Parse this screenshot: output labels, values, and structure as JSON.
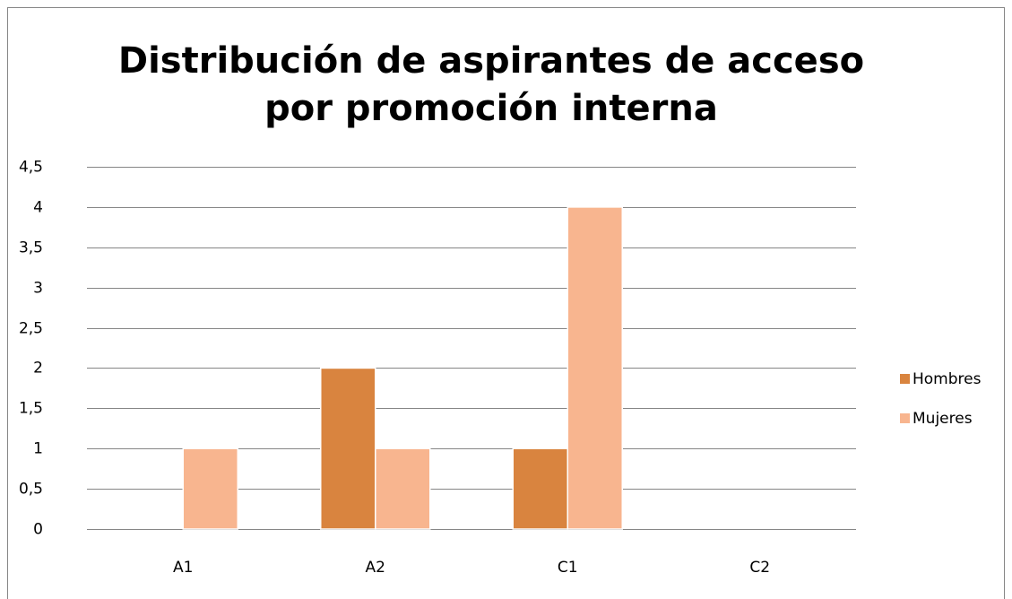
{
  "chart_data": {
    "type": "bar",
    "title": "Distribución de aspirantes de acceso por promoción interna",
    "categories": [
      "A1",
      "A2",
      "C1",
      "C2"
    ],
    "series": [
      {
        "name": "Hombres",
        "color": "#d9843f",
        "values": [
          0,
          2,
          1,
          0
        ]
      },
      {
        "name": "Mujeres",
        "color": "#f8b58f",
        "values": [
          1,
          1,
          4,
          0
        ]
      }
    ],
    "ylim": [
      0,
      4.5
    ],
    "yticks": [
      0,
      {
        "value": 0.5,
        "label": "0,5"
      },
      1,
      {
        "value": 1.5,
        "label": "1,5"
      },
      2,
      {
        "value": 2.5,
        "label": "2,5"
      },
      3,
      {
        "value": 3.5,
        "label": "3,5"
      },
      4,
      {
        "value": 4.5,
        "label": "4,5"
      }
    ],
    "grid": true,
    "legend": "right"
  }
}
